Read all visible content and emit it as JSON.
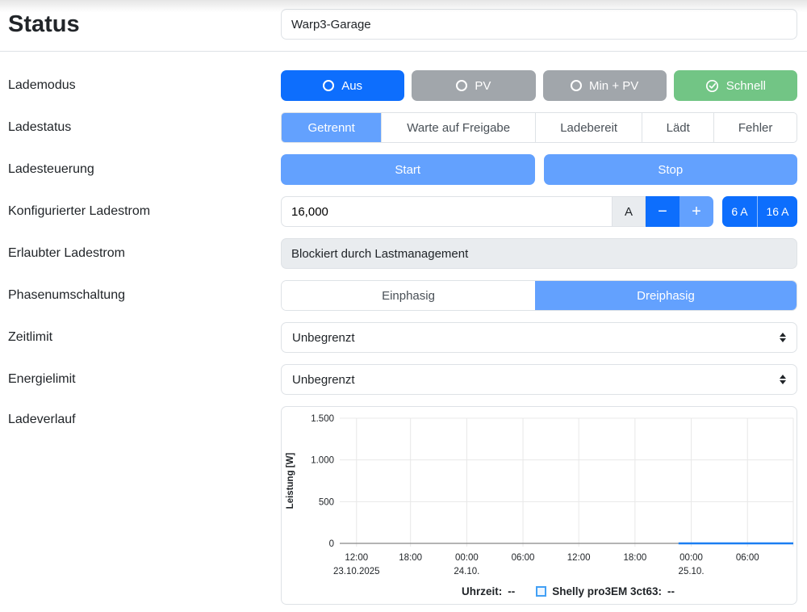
{
  "page": {
    "title": "Status"
  },
  "header": {
    "device_name": "Warp3-Garage"
  },
  "rows": {
    "lademodus": {
      "label": "Lademodus",
      "buttons": [
        {
          "label": "Aus",
          "icon": "circle-icon",
          "color": "#0d6efd",
          "active": true
        },
        {
          "label": "PV",
          "icon": "circle-icon",
          "color": "#a1a6ab",
          "active": false
        },
        {
          "label": "Min + PV",
          "icon": "circle-icon",
          "color": "#a1a6ab",
          "active": false
        },
        {
          "label": "Schnell",
          "icon": "check-circle-icon",
          "color": "#72c585",
          "active": false
        }
      ]
    },
    "ladestatus": {
      "label": "Ladestatus",
      "active": "Getrennt",
      "segments": [
        {
          "label": "Getrennt"
        },
        {
          "label": "Warte auf Freigabe"
        },
        {
          "label": "Ladebereit"
        },
        {
          "label": "Lädt"
        },
        {
          "label": "Fehler"
        }
      ]
    },
    "ladesteuerung": {
      "label": "Ladesteuerung",
      "start": "Start",
      "stop": "Stop"
    },
    "ladestrom": {
      "label": "Konfigurierter Ladestrom",
      "value": "16,000",
      "unit": "A",
      "minus": "−",
      "plus": "+",
      "preset_low": "6 A",
      "preset_high": "16 A"
    },
    "erlaubt": {
      "label": "Erlaubter Ladestrom",
      "value": "Blockiert durch Lastmanagement"
    },
    "phasen": {
      "label": "Phasenumschaltung",
      "active": "Dreiphasig",
      "options": [
        {
          "label": "Einphasig"
        },
        {
          "label": "Dreiphasig"
        }
      ]
    },
    "zeitlimit": {
      "label": "Zeitlimit",
      "value": "Unbegrenzt"
    },
    "energielimit": {
      "label": "Energielimit",
      "value": "Unbegrenzt"
    },
    "ladeverlauf": {
      "label": "Ladeverlauf"
    }
  },
  "colors": {
    "primary": "#0d6efd",
    "primary_disabled": "#63a1fe",
    "secondary_gray": "#a1a6ab",
    "success_green": "#72c585",
    "border": "#dee2e6",
    "addon_bg": "#e9ecef",
    "chart_line": "#1b7ef2",
    "grid": "#e8e8e8",
    "zero_axis": "#888888"
  },
  "chart_data": {
    "type": "line",
    "title": "",
    "xlabel": "",
    "ylabel": "Leistung [W]",
    "ylim": [
      0,
      1500
    ],
    "grid": true,
    "yticks": [
      {
        "value": 0,
        "label": "0"
      },
      {
        "value": 500,
        "label": "500"
      },
      {
        "value": 1000,
        "label": "1.000"
      },
      {
        "value": 1500,
        "label": "1.500"
      }
    ],
    "xticks": [
      {
        "frac": 0.037,
        "time": "12:00",
        "date": "23.10.2025"
      },
      {
        "frac": 0.156,
        "time": "18:00",
        "date": ""
      },
      {
        "frac": 0.28,
        "time": "00:00",
        "date": "24.10."
      },
      {
        "frac": 0.404,
        "time": "06:00",
        "date": ""
      },
      {
        "frac": 0.527,
        "time": "12:00",
        "date": ""
      },
      {
        "frac": 0.651,
        "time": "18:00",
        "date": ""
      },
      {
        "frac": 0.775,
        "time": "00:00",
        "date": "25.10."
      },
      {
        "frac": 0.899,
        "time": "06:00",
        "date": ""
      }
    ],
    "series": [
      {
        "name": "Shelly pro3EM 3ct63",
        "color": "#1b7ef2",
        "points": [
          {
            "x_frac": 0.747,
            "y": 0
          },
          {
            "x_frac": 1.0,
            "y": 0
          }
        ]
      }
    ],
    "legend": {
      "position": "bottom",
      "entries": [
        {
          "label": "Uhrzeit:",
          "value": "--"
        },
        {
          "label": "Shelly pro3EM 3ct63:",
          "value": "--",
          "swatch": "#1b7ef2"
        }
      ]
    }
  }
}
